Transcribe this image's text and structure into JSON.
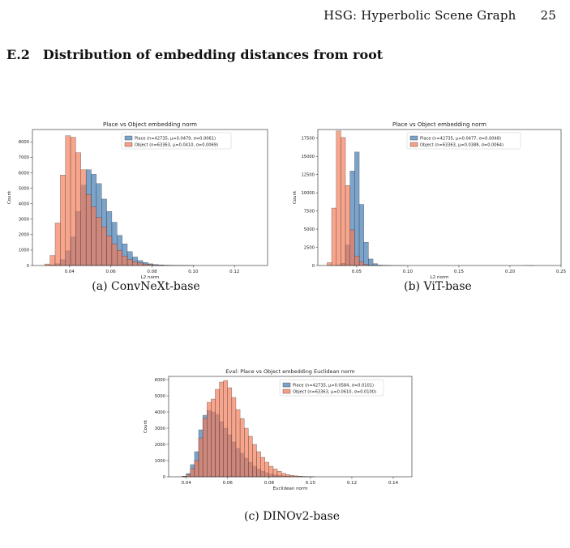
{
  "page": {
    "running_title": "HSG: Hyperbolic Scene Graph",
    "page_number": "25",
    "section_number": "E.2",
    "section_title": "Distribution of embedding distances from root"
  },
  "colors": {
    "place": "#4a7fb5",
    "object": "#f47a57",
    "overlap": "#8a5a4e"
  },
  "figures": {
    "a": {
      "caption": "(a) ConvNeXt-base"
    },
    "b": {
      "caption": "(b) ViT-base"
    },
    "c": {
      "caption": "(c) DINOv2-base"
    }
  },
  "chart_data": [
    {
      "id": "a",
      "type": "histogram",
      "title": "Place vs Object embedding norm",
      "xlabel": "L2 norm",
      "ylabel": "Count",
      "xlim": [
        0.022,
        0.136
      ],
      "ylim": [
        0,
        8800
      ],
      "xticks": [
        0.04,
        0.06,
        0.08,
        0.1,
        0.12
      ],
      "xtick_labels": [
        "0.04",
        "0.06",
        "0.08",
        "0.10",
        "0.12"
      ],
      "yticks": [
        0,
        1000,
        2000,
        3000,
        4000,
        5000,
        6000,
        7000,
        8000
      ],
      "ytick_labels": [
        "0",
        "1000",
        "2000",
        "3000",
        "4000",
        "5000",
        "6000",
        "7000",
        "8000"
      ],
      "legend_position": "top-right",
      "series": [
        {
          "name": "Place (n=42735, μ=0.0479, σ=0.0061)",
          "x_start": 0.0305,
          "bin_width": 0.0025,
          "values": [
            30,
            120,
            380,
            950,
            1850,
            3500,
            5200,
            6200,
            5900,
            5300,
            4300,
            3500,
            2800,
            1950,
            1400,
            900,
            550,
            320,
            200,
            110,
            60,
            40,
            25,
            12,
            8,
            5,
            3,
            2
          ]
        },
        {
          "name": "Object (n=63363, μ=0.0410, σ=0.0069)",
          "x_start": 0.028,
          "bin_width": 0.0025,
          "values": [
            100,
            650,
            2750,
            5850,
            8400,
            8300,
            7300,
            6200,
            4600,
            3800,
            3100,
            2500,
            1900,
            1400,
            980,
            620,
            400,
            250,
            160,
            100,
            60,
            35,
            20,
            12,
            6,
            3,
            2,
            1
          ]
        }
      ]
    },
    {
      "id": "b",
      "type": "histogram",
      "title": "Place vs Object embedding norm",
      "xlabel": "L2 norm",
      "ylabel": "Count",
      "xlim": [
        0.012,
        0.25
      ],
      "ylim": [
        0,
        18700
      ],
      "xticks": [
        0.05,
        0.1,
        0.15,
        0.2,
        0.25
      ],
      "xtick_labels": [
        "0.05",
        "0.10",
        "0.15",
        "0.20",
        "0.25"
      ],
      "yticks": [
        0,
        2500,
        5000,
        7500,
        10000,
        12500,
        15000,
        17500
      ],
      "ytick_labels": [
        "0",
        "2500",
        "5000",
        "7500",
        "10000",
        "12500",
        "15000",
        "17500"
      ],
      "legend_position": "top-right",
      "series": [
        {
          "name": "Place (n=42735, μ=0.0477, σ=0.0048)",
          "x_start": 0.03,
          "bin_width": 0.0045,
          "values": [
            50,
            300,
            2800,
            13000,
            15600,
            8400,
            3200,
            900,
            250,
            60,
            20,
            8,
            4,
            2,
            1,
            0,
            0,
            0,
            0,
            0,
            0,
            0,
            0,
            0,
            0,
            0,
            0,
            0,
            0,
            0,
            0,
            0,
            0,
            0,
            0,
            0,
            0,
            0,
            0,
            0,
            0,
            0,
            1
          ]
        },
        {
          "name": "Object (n=63363, μ=0.0388, σ=0.0064)",
          "x_start": 0.021,
          "bin_width": 0.0045,
          "values": [
            400,
            7900,
            18500,
            17600,
            11000,
            4900,
            1300,
            500,
            150,
            40,
            12,
            5,
            2,
            1,
            0,
            0,
            0,
            0,
            0,
            0,
            0,
            0,
            0,
            0,
            0,
            0,
            0,
            0,
            0,
            0,
            0,
            0,
            0,
            0,
            0,
            0,
            0,
            0,
            0,
            0,
            0,
            0,
            0,
            1
          ]
        }
      ]
    },
    {
      "id": "c",
      "type": "histogram",
      "title": "Eval: Place vs Object embedding Euclidean norm",
      "xlabel": "Euclidean norm",
      "ylabel": "Count",
      "xlim": [
        0.0315,
        0.149
      ],
      "ylim": [
        0,
        6200
      ],
      "xticks": [
        0.04,
        0.06,
        0.08,
        0.1,
        0.12,
        0.14
      ],
      "xtick_labels": [
        "0.04",
        "0.06",
        "0.08",
        "0.10",
        "0.12",
        "0.14"
      ],
      "yticks": [
        0,
        1000,
        2000,
        3000,
        4000,
        5000,
        6000
      ],
      "ytick_labels": [
        "0",
        "1000",
        "2000",
        "3000",
        "4000",
        "5000",
        "6000"
      ],
      "legend_position": "top-right",
      "series": [
        {
          "name": "Place (n=42735, μ=0.0584, σ=0.0101)",
          "x_start": 0.038,
          "bin_width": 0.002,
          "values": [
            40,
            200,
            750,
            1550,
            2900,
            3800,
            4100,
            4000,
            3850,
            3400,
            3000,
            2600,
            2150,
            1750,
            1450,
            1150,
            900,
            650,
            480,
            350,
            250,
            170,
            120,
            80,
            55,
            35,
            22,
            15,
            8,
            5,
            3,
            2
          ]
        },
        {
          "name": "Object (n=63363, μ=0.0610, σ=0.0100)",
          "x_start": 0.038,
          "bin_width": 0.002,
          "values": [
            20,
            120,
            500,
            1000,
            2400,
            3600,
            4600,
            4800,
            5400,
            5850,
            5950,
            5500,
            4900,
            4150,
            3600,
            3000,
            2500,
            2000,
            1550,
            1200,
            900,
            650,
            480,
            340,
            220,
            140,
            90,
            55,
            35,
            20,
            10,
            5
          ]
        }
      ]
    }
  ]
}
